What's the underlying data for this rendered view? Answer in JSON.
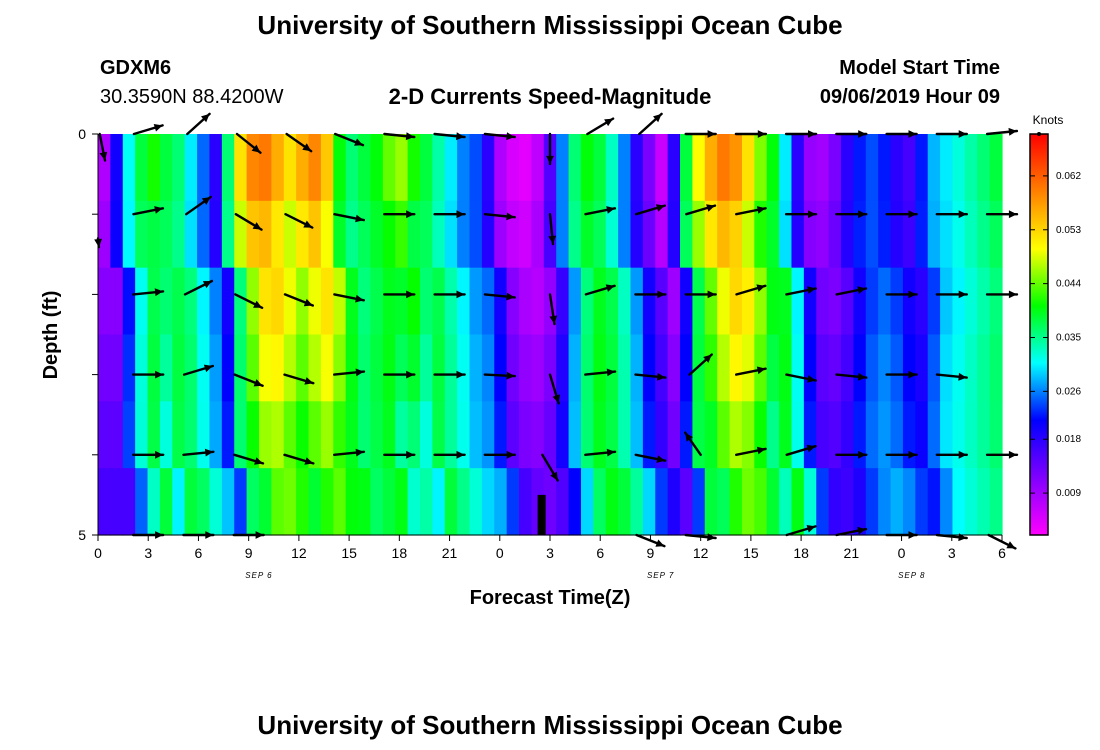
{
  "page": {
    "title": "University of Southern Mississippi Ocean Cube",
    "footer_title": "University of Southern Mississippi Ocean Cube",
    "station_id": "GDXM6",
    "station_coords": "30.3590N 88.4200W",
    "model_label": "Model Start Time",
    "model_time": "09/06/2019 Hour 09"
  },
  "chart_data": {
    "type": "heatmap",
    "title": "2-D Currents Speed-Magnitude",
    "xlabel": "Forecast Time(Z)",
    "ylabel": "Depth (ft)",
    "colorbar_label": "Knots",
    "colorbar_ticks": [
      "0.062",
      "0.053",
      "0.044",
      "0.035",
      "0.026",
      "0.018",
      "0.009"
    ],
    "colorbar_range": [
      0.002,
      0.069
    ],
    "colormap": [
      "#ff00ff",
      "#8000ff",
      "#0000ff",
      "#00ffff",
      "#00ff00",
      "#ffff00",
      "#ff8000",
      "#ff0000"
    ],
    "x_ticks": [
      "0",
      "3",
      "6",
      "9",
      "12",
      "15",
      "18",
      "21",
      "0",
      "3",
      "6",
      "9",
      "12",
      "15",
      "18",
      "21",
      "0",
      "3",
      "6"
    ],
    "date_labels": [
      {
        "text": "SEP 6",
        "tick": 4
      },
      {
        "text": "SEP 7",
        "tick": 12
      },
      {
        "text": "SEP 8",
        "tick": 17
      }
    ],
    "y_ticks": [
      "0",
      "5"
    ],
    "y_range": [
      0,
      5
    ],
    "depths": [
      0,
      1,
      2,
      3,
      4,
      5
    ],
    "x_hours_range": [
      0,
      54
    ],
    "speed_profile": [
      0.008,
      0.02,
      0.031,
      0.038,
      0.041,
      0.038,
      0.036,
      0.03,
      0.025,
      0.018,
      0.036,
      0.052,
      0.059,
      0.06,
      0.056,
      0.052,
      0.056,
      0.059,
      0.054,
      0.04,
      0.036,
      0.038,
      0.04,
      0.044,
      0.046,
      0.041,
      0.038,
      0.034,
      0.03,
      0.026,
      0.024,
      0.018,
      0.008,
      0.005,
      0.004,
      0.007,
      0.015,
      0.026,
      0.036,
      0.04,
      0.038,
      0.033,
      0.026,
      0.018,
      0.012,
      0.006,
      0.018,
      0.038,
      0.05,
      0.056,
      0.06,
      0.058,
      0.052,
      0.045,
      0.04,
      0.03,
      0.018,
      0.01,
      0.009,
      0.012,
      0.018,
      0.022,
      0.024,
      0.022,
      0.018,
      0.016,
      0.022,
      0.028,
      0.03,
      0.032,
      0.034,
      0.036,
      0.038
    ],
    "depth_factor": [
      1.0,
      0.92,
      0.88,
      0.84,
      0.78,
      0.74
    ],
    "arrows": [
      {
        "h": 0.1,
        "d": 0.0,
        "u": 0.2,
        "v": -1.0,
        "s": 0.9
      },
      {
        "h": 0.0,
        "d": 1.3,
        "u": 0.1,
        "v": -1.0,
        "s": 0.3
      },
      {
        "h": 3,
        "d": 0,
        "u": 1.0,
        "v": 0.3,
        "s": 1.0
      },
      {
        "h": 6,
        "d": 0,
        "u": 1.0,
        "v": 0.9,
        "s": 1.0
      },
      {
        "h": 9,
        "d": 0,
        "u": 1.0,
        "v": -0.8,
        "s": 1.0
      },
      {
        "h": 12,
        "d": 0,
        "u": 1.0,
        "v": -0.7,
        "s": 1.0
      },
      {
        "h": 15,
        "d": 0,
        "u": 1.0,
        "v": -0.4,
        "s": 1.0
      },
      {
        "h": 18,
        "d": 0,
        "u": 1.0,
        "v": -0.1,
        "s": 1.0
      },
      {
        "h": 21,
        "d": 0,
        "u": 1.0,
        "v": -0.1,
        "s": 1.0
      },
      {
        "h": 24,
        "d": 0,
        "u": 1.0,
        "v": -0.1,
        "s": 1.0
      },
      {
        "h": 27,
        "d": 0,
        "u": 0.0,
        "v": -1.0,
        "s": 1.0
      },
      {
        "h": 30,
        "d": 0,
        "u": 1.0,
        "v": 0.6,
        "s": 1.0
      },
      {
        "h": 33,
        "d": 0,
        "u": 1.0,
        "v": 0.9,
        "s": 1.0
      },
      {
        "h": 36,
        "d": 0,
        "u": 1.0,
        "v": 0.0,
        "s": 1.0
      },
      {
        "h": 39,
        "d": 0,
        "u": 1.0,
        "v": 0.0,
        "s": 1.0
      },
      {
        "h": 42,
        "d": 0,
        "u": 1.0,
        "v": 0.0,
        "s": 1.0
      },
      {
        "h": 45,
        "d": 0,
        "u": 1.0,
        "v": 0.0,
        "s": 1.0
      },
      {
        "h": 48,
        "d": 0,
        "u": 1.0,
        "v": 0.0,
        "s": 1.0
      },
      {
        "h": 51,
        "d": 0,
        "u": 1.0,
        "v": 0.0,
        "s": 1.0
      },
      {
        "h": 54,
        "d": 0,
        "u": 1.0,
        "v": 0.1,
        "s": 1.0
      },
      {
        "h": 3,
        "d": 1,
        "u": 1.0,
        "v": 0.2,
        "s": 1.0
      },
      {
        "h": 6,
        "d": 1,
        "u": 1.0,
        "v": 0.7,
        "s": 1.0
      },
      {
        "h": 9,
        "d": 1,
        "u": 1.0,
        "v": -0.6,
        "s": 1.0
      },
      {
        "h": 12,
        "d": 1,
        "u": 1.0,
        "v": -0.5,
        "s": 1.0
      },
      {
        "h": 15,
        "d": 1,
        "u": 1.0,
        "v": -0.2,
        "s": 1.0
      },
      {
        "h": 18,
        "d": 1,
        "u": 1.0,
        "v": 0.0,
        "s": 1.0
      },
      {
        "h": 21,
        "d": 1,
        "u": 1.0,
        "v": 0.0,
        "s": 1.0
      },
      {
        "h": 24,
        "d": 1,
        "u": 1.0,
        "v": -0.1,
        "s": 1.0
      },
      {
        "h": 27,
        "d": 1,
        "u": 0.1,
        "v": -1.0,
        "s": 1.0
      },
      {
        "h": 30,
        "d": 1,
        "u": 1.0,
        "v": 0.2,
        "s": 1.0
      },
      {
        "h": 33,
        "d": 1,
        "u": 1.0,
        "v": 0.3,
        "s": 1.0
      },
      {
        "h": 36,
        "d": 1,
        "u": 1.0,
        "v": 0.3,
        "s": 1.0
      },
      {
        "h": 39,
        "d": 1,
        "u": 1.0,
        "v": 0.2,
        "s": 1.0
      },
      {
        "h": 42,
        "d": 1,
        "u": 1.0,
        "v": 0.0,
        "s": 1.0
      },
      {
        "h": 45,
        "d": 1,
        "u": 1.0,
        "v": 0.0,
        "s": 1.0
      },
      {
        "h": 48,
        "d": 1,
        "u": 1.0,
        "v": 0.0,
        "s": 1.0
      },
      {
        "h": 51,
        "d": 1,
        "u": 1.0,
        "v": 0.0,
        "s": 1.0
      },
      {
        "h": 54,
        "d": 1,
        "u": 1.0,
        "v": 0.0,
        "s": 1.0
      },
      {
        "h": 3,
        "d": 2,
        "u": 1.0,
        "v": 0.1,
        "s": 1.0
      },
      {
        "h": 6,
        "d": 2,
        "u": 1.0,
        "v": 0.5,
        "s": 1.0
      },
      {
        "h": 9,
        "d": 2,
        "u": 1.0,
        "v": -0.5,
        "s": 1.0
      },
      {
        "h": 12,
        "d": 2,
        "u": 1.0,
        "v": -0.4,
        "s": 1.0
      },
      {
        "h": 15,
        "d": 2,
        "u": 1.0,
        "v": -0.2,
        "s": 1.0
      },
      {
        "h": 18,
        "d": 2,
        "u": 1.0,
        "v": 0.0,
        "s": 1.0
      },
      {
        "h": 21,
        "d": 2,
        "u": 1.0,
        "v": 0.0,
        "s": 1.0
      },
      {
        "h": 24,
        "d": 2,
        "u": 1.0,
        "v": -0.1,
        "s": 1.0
      },
      {
        "h": 27,
        "d": 2,
        "u": 0.15,
        "v": -1.0,
        "s": 1.0
      },
      {
        "h": 30,
        "d": 2,
        "u": 1.0,
        "v": 0.3,
        "s": 1.0
      },
      {
        "h": 33,
        "d": 2,
        "u": 1.0,
        "v": 0.0,
        "s": 1.0
      },
      {
        "h": 36,
        "d": 2,
        "u": 1.0,
        "v": 0.0,
        "s": 1.0
      },
      {
        "h": 39,
        "d": 2,
        "u": 1.0,
        "v": 0.3,
        "s": 1.0
      },
      {
        "h": 42,
        "d": 2,
        "u": 1.0,
        "v": 0.2,
        "s": 1.0
      },
      {
        "h": 45,
        "d": 2,
        "u": 1.0,
        "v": 0.2,
        "s": 1.0
      },
      {
        "h": 48,
        "d": 2,
        "u": 1.0,
        "v": 0.0,
        "s": 1.0
      },
      {
        "h": 51,
        "d": 2,
        "u": 1.0,
        "v": 0.0,
        "s": 1.0
      },
      {
        "h": 54,
        "d": 2,
        "u": 1.0,
        "v": 0.0,
        "s": 1.0
      },
      {
        "h": 3,
        "d": 3,
        "u": 1.0,
        "v": 0.0,
        "s": 1.0
      },
      {
        "h": 6,
        "d": 3,
        "u": 1.0,
        "v": 0.3,
        "s": 1.0
      },
      {
        "h": 9,
        "d": 3,
        "u": 1.0,
        "v": -0.4,
        "s": 1.0
      },
      {
        "h": 12,
        "d": 3,
        "u": 1.0,
        "v": -0.3,
        "s": 1.0
      },
      {
        "h": 15,
        "d": 3,
        "u": 1.0,
        "v": 0.1,
        "s": 1.0
      },
      {
        "h": 18,
        "d": 3,
        "u": 1.0,
        "v": 0.0,
        "s": 1.0
      },
      {
        "h": 21,
        "d": 3,
        "u": 1.0,
        "v": 0.0,
        "s": 1.0
      },
      {
        "h": 24,
        "d": 3,
        "u": 1.0,
        "v": -0.05,
        "s": 1.0
      },
      {
        "h": 27,
        "d": 3,
        "u": 0.3,
        "v": -1.0,
        "s": 1.0
      },
      {
        "h": 30,
        "d": 3,
        "u": 1.0,
        "v": 0.1,
        "s": 1.0
      },
      {
        "h": 33,
        "d": 3,
        "u": 1.0,
        "v": -0.1,
        "s": 1.0
      },
      {
        "h": 36,
        "d": 3,
        "u": 1.0,
        "v": 0.9,
        "s": 1.0
      },
      {
        "h": 39,
        "d": 3,
        "u": 1.0,
        "v": 0.2,
        "s": 1.0
      },
      {
        "h": 42,
        "d": 3,
        "u": 1.0,
        "v": -0.2,
        "s": 1.0
      },
      {
        "h": 45,
        "d": 3,
        "u": 1.0,
        "v": -0.1,
        "s": 1.0
      },
      {
        "h": 48,
        "d": 3,
        "u": 1.0,
        "v": 0.0,
        "s": 1.0
      },
      {
        "h": 51,
        "d": 3,
        "u": 1.0,
        "v": -0.1,
        "s": 1.0
      },
      {
        "h": 3,
        "d": 4,
        "u": 1.0,
        "v": 0.0,
        "s": 1.0
      },
      {
        "h": 6,
        "d": 4,
        "u": 1.0,
        "v": 0.1,
        "s": 1.0
      },
      {
        "h": 9,
        "d": 4,
        "u": 1.0,
        "v": -0.3,
        "s": 1.0
      },
      {
        "h": 12,
        "d": 4,
        "u": 1.0,
        "v": -0.3,
        "s": 1.0
      },
      {
        "h": 15,
        "d": 4,
        "u": 1.0,
        "v": 0.1,
        "s": 1.0
      },
      {
        "h": 18,
        "d": 4,
        "u": 1.0,
        "v": 0.0,
        "s": 1.0
      },
      {
        "h": 21,
        "d": 4,
        "u": 1.0,
        "v": 0.0,
        "s": 1.0
      },
      {
        "h": 24,
        "d": 4,
        "u": 1.0,
        "v": 0.0,
        "s": 1.0
      },
      {
        "h": 27,
        "d": 4,
        "u": 0.6,
        "v": -1.0,
        "s": 1.0
      },
      {
        "h": 30,
        "d": 4,
        "u": 1.0,
        "v": 0.1,
        "s": 1.0
      },
      {
        "h": 33,
        "d": 4,
        "u": 1.0,
        "v": -0.2,
        "s": 1.0
      },
      {
        "h": 36,
        "d": 4,
        "u": -0.7,
        "v": 1.0,
        "s": 0.9
      },
      {
        "h": 39,
        "d": 4,
        "u": 1.0,
        "v": 0.2,
        "s": 1.0
      },
      {
        "h": 42,
        "d": 4,
        "u": 1.0,
        "v": 0.3,
        "s": 1.0
      },
      {
        "h": 45,
        "d": 4,
        "u": 1.0,
        "v": 0.0,
        "s": 1.0
      },
      {
        "h": 48,
        "d": 4,
        "u": 1.0,
        "v": 0.0,
        "s": 1.0
      },
      {
        "h": 51,
        "d": 4,
        "u": 1.0,
        "v": 0.0,
        "s": 1.0
      },
      {
        "h": 54,
        "d": 4,
        "u": 1.0,
        "v": 0.0,
        "s": 1.0
      },
      {
        "h": 3,
        "d": 5,
        "u": 1.0,
        "v": 0.0,
        "s": 1.0
      },
      {
        "h": 6,
        "d": 5,
        "u": 1.0,
        "v": 0.0,
        "s": 1.0
      },
      {
        "h": 9,
        "d": 5,
        "u": 1.0,
        "v": 0.0,
        "s": 1.0
      },
      {
        "h": 27,
        "d": 5,
        "u": 0.0,
        "v": 0.0,
        "s": 0.0
      },
      {
        "h": 33,
        "d": 5,
        "u": 1.0,
        "v": -0.4,
        "s": 1.0
      },
      {
        "h": 36,
        "d": 5,
        "u": 1.0,
        "v": -0.1,
        "s": 1.0
      },
      {
        "h": 42,
        "d": 5,
        "u": 1.0,
        "v": 0.3,
        "s": 1.0
      },
      {
        "h": 45,
        "d": 5,
        "u": 1.0,
        "v": 0.2,
        "s": 1.0
      },
      {
        "h": 48,
        "d": 5,
        "u": 1.0,
        "v": 0.0,
        "s": 1.0
      },
      {
        "h": 51,
        "d": 5,
        "u": 1.0,
        "v": -0.1,
        "s": 1.0
      },
      {
        "h": 54,
        "d": 5,
        "u": 1.0,
        "v": -0.5,
        "s": 1.0
      }
    ],
    "bottom_marker": {
      "h": 26.5,
      "depth_from": 4.5,
      "depth_to": 5
    }
  }
}
